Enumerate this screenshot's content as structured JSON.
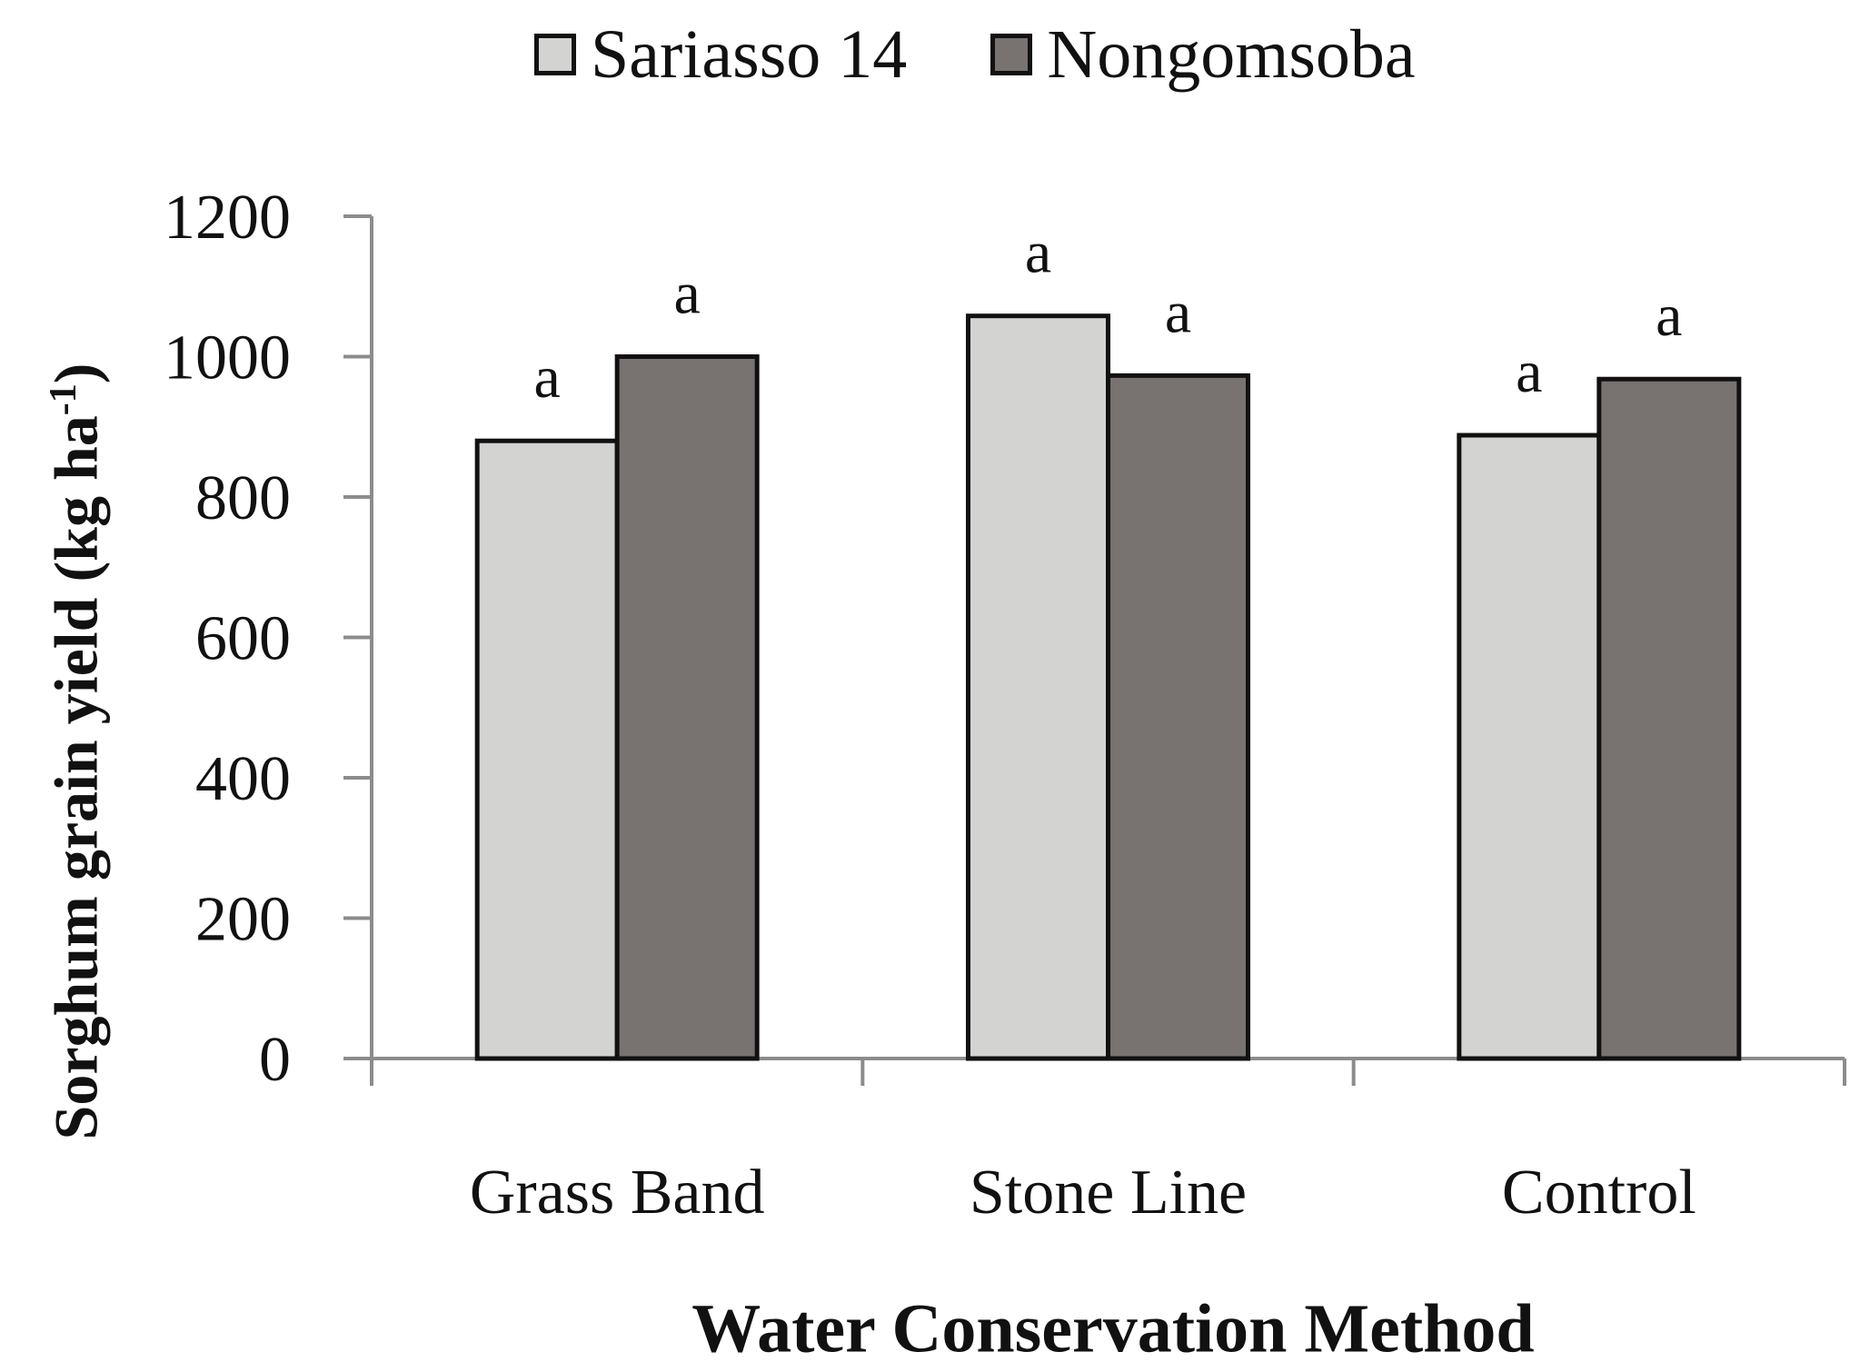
{
  "chart_data": {
    "type": "bar",
    "categories": [
      "Grass Band",
      "Stone Line",
      "Control"
    ],
    "series": [
      {
        "name": "Sariasso 14",
        "color": "#d3d3d1",
        "values": [
          880,
          1058,
          888
        ],
        "letters": [
          "a",
          "a",
          "a"
        ]
      },
      {
        "name": "Nongomsoba",
        "color": "#787270",
        "values": [
          1000,
          973,
          968
        ],
        "letters": [
          "a",
          "a",
          "a"
        ]
      }
    ],
    "xlabel": "Water Conservation Method",
    "ylabel": {
      "main": "Sorghum grain yield  (kg ha",
      "sup": "-1",
      "tail": ")"
    },
    "ylim": [
      0,
      1200
    ],
    "yticks": [
      "0",
      "200",
      "400",
      "600",
      "800",
      "1000",
      "1200"
    ],
    "grid": false,
    "legend_position": "top"
  }
}
